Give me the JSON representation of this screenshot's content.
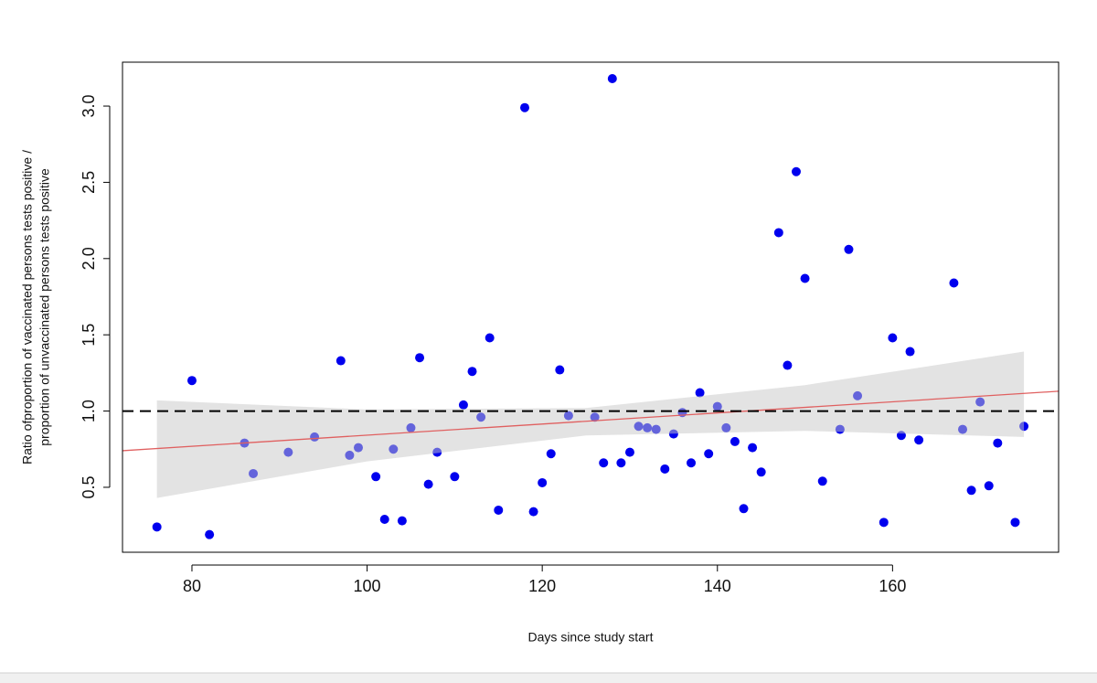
{
  "chart_data": {
    "type": "scatter",
    "xlabel": "Days since study start",
    "ylabel": [
      "Ratio ofproportion of vaccinated persons tests positive /",
      "proportion of unvaccinated persons tests positive"
    ],
    "xlim": [
      72.07,
      178.96
    ],
    "ylim": [
      0.074,
      3.288
    ],
    "xticks": [
      80,
      100,
      120,
      140,
      160
    ],
    "yticks": [
      0.5,
      {
        "value": 1.0,
        "label": "1.0"
      },
      1.5,
      {
        "value": 2.0,
        "label": "2.0"
      },
      2.5,
      {
        "value": 3.0,
        "label": "3.0"
      }
    ],
    "reference_line": 1.0,
    "series": [
      {
        "color": "#0000ee",
        "x": [
          76,
          80,
          82,
          86,
          87,
          91,
          94,
          97,
          98,
          99,
          101,
          102,
          103,
          104,
          105,
          106,
          107,
          108,
          110,
          111,
          112,
          113,
          114,
          115,
          118,
          119,
          120,
          121,
          122,
          123,
          126,
          127,
          128,
          129,
          130,
          131,
          132,
          133,
          134,
          135,
          136,
          137,
          138,
          139,
          140,
          141,
          142,
          143,
          144,
          145,
          147,
          148,
          149,
          150,
          152,
          154,
          155,
          156,
          159,
          160,
          161,
          162,
          163,
          167,
          168,
          169,
          170,
          171,
          172,
          174,
          175
        ],
        "values": [
          0.24,
          1.2,
          0.19,
          0.79,
          0.59,
          0.73,
          0.83,
          1.33,
          0.71,
          0.76,
          0.57,
          0.29,
          0.75,
          0.28,
          0.89,
          1.35,
          0.52,
          0.73,
          0.57,
          1.04,
          1.26,
          0.96,
          1.48,
          0.35,
          2.99,
          0.34,
          0.53,
          0.72,
          1.27,
          0.97,
          0.96,
          0.66,
          3.18,
          0.66,
          0.73,
          0.9,
          0.89,
          0.88,
          0.62,
          0.85,
          0.99,
          0.66,
          1.12,
          0.72,
          1.03,
          0.89,
          0.8,
          0.36,
          0.76,
          0.6,
          2.17,
          1.3,
          2.57,
          1.87,
          0.54,
          0.88,
          2.06,
          1.1,
          0.27,
          1.48,
          0.84,
          1.39,
          0.81,
          1.84,
          0.88,
          0.48,
          1.06,
          0.51,
          0.79,
          0.27,
          0.9
        ]
      }
    ],
    "fit": {
      "color": "#e06060",
      "x": [
        72.07,
        178.96
      ],
      "values": [
        0.74,
        1.13
      ]
    },
    "band": {
      "color": "#c8c8c8",
      "x": [
        76,
        100,
        125,
        150,
        175
      ],
      "upper": [
        1.07,
        1.01,
        1.02,
        1.17,
        1.39
      ],
      "lower": [
        0.43,
        0.67,
        0.84,
        0.87,
        0.83
      ]
    }
  }
}
